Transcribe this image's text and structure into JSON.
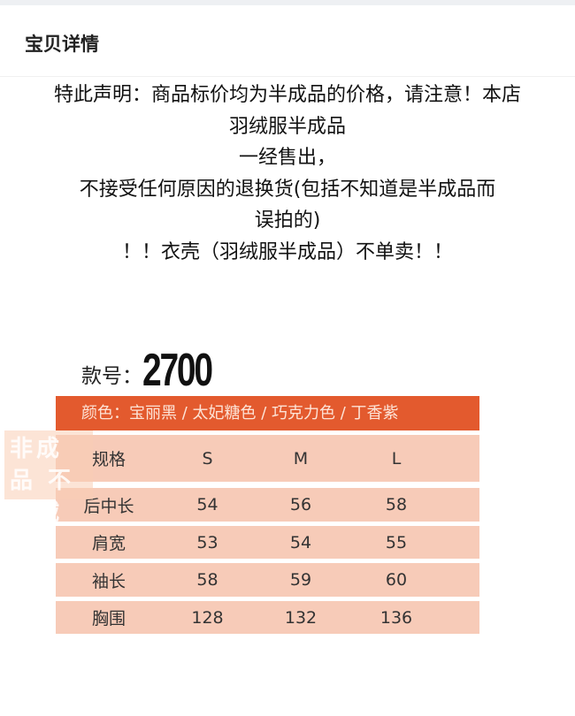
{
  "header": {
    "title": "宝贝详情"
  },
  "notice": {
    "lines": [
      "特此声明：商品标价均为半成品的价格，请注意！本店",
      "羽绒服半成品",
      "一经售出，",
      "不接受任何原因的退换货(包括不知道是半成品而",
      "误拍的)",
      "！！衣壳（羽绒服半成品）不单卖！！"
    ]
  },
  "product": {
    "style_label": "款号：",
    "style_number": "2700",
    "colors": "颜色：宝丽黑 / 太妃糖色 / 巧克力色 / 丁香紫",
    "watermark": "非成品 不含绒",
    "size_table": {
      "headers": [
        "规格",
        "S",
        "M",
        "L"
      ],
      "rows": [
        [
          "后中长",
          "54",
          "56",
          "58"
        ],
        [
          "肩宽",
          "53",
          "54",
          "55"
        ],
        [
          "袖长",
          "58",
          "59",
          "60"
        ],
        [
          "胸围",
          "128",
          "132",
          "136"
        ]
      ]
    }
  },
  "colors": {
    "accent": "#e35a2e",
    "row_bg": "#f7cbb8"
  }
}
